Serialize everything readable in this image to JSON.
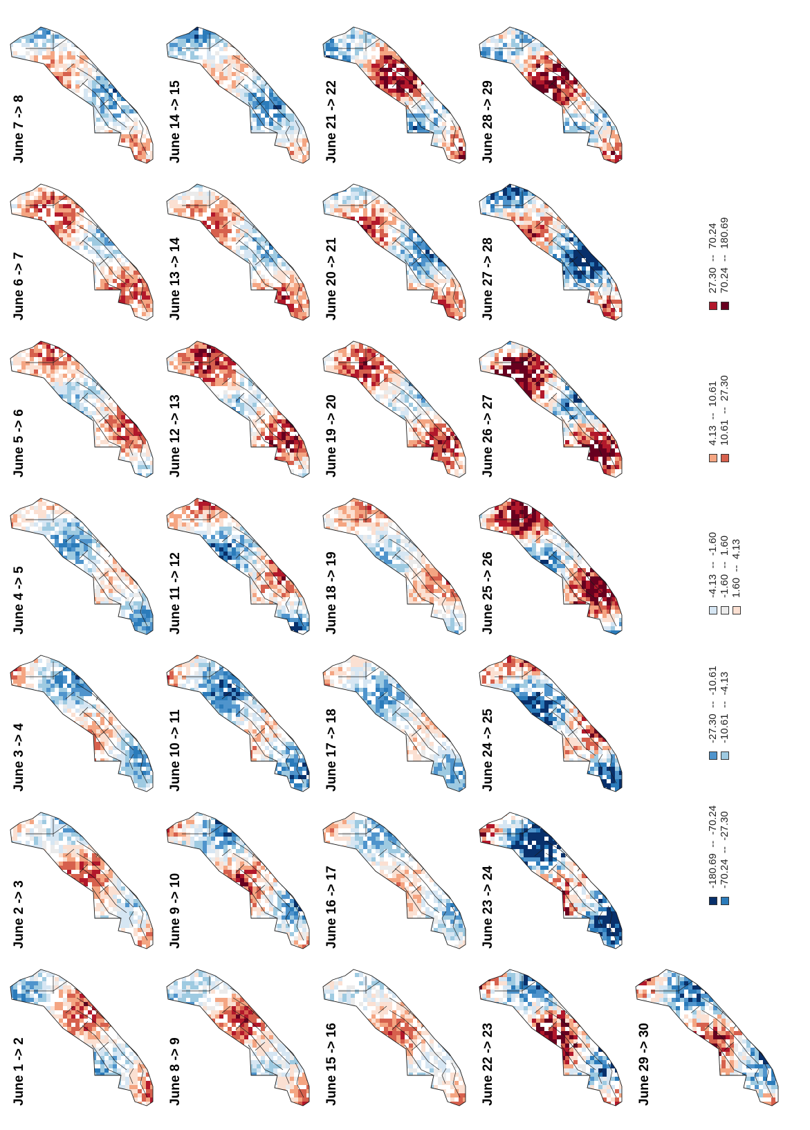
{
  "panels": [
    {
      "title": "June 1 -> 2",
      "seed": 11,
      "phase": 0.0,
      "amp": 0.55
    },
    {
      "title": "June 2 -> 3",
      "seed": 12,
      "phase": 0.9,
      "amp": 0.55
    },
    {
      "title": "June 3 -> 4",
      "seed": 13,
      "phase": 1.8,
      "amp": 0.55
    },
    {
      "title": "June 4 -> 5",
      "seed": 14,
      "phase": 2.7,
      "amp": 0.5
    },
    {
      "title": "June 5 -> 6",
      "seed": 15,
      "phase": 3.6,
      "amp": 0.55
    },
    {
      "title": "June 6 -> 7",
      "seed": 16,
      "phase": 4.5,
      "amp": 0.55
    },
    {
      "title": "June 7 -> 8",
      "seed": 17,
      "phase": 5.4,
      "amp": 0.55
    },
    {
      "title": "June 8 -> 9",
      "seed": 18,
      "phase": 0.4,
      "amp": 0.55
    },
    {
      "title": "June 9 -> 10",
      "seed": 19,
      "phase": 1.3,
      "amp": 0.65
    },
    {
      "title": "June 10 -> 11",
      "seed": 20,
      "phase": 2.2,
      "amp": 0.6
    },
    {
      "title": "June 11 -> 12",
      "seed": 21,
      "phase": 3.1,
      "amp": 0.65
    },
    {
      "title": "June 12 -> 13",
      "seed": 22,
      "phase": 4.0,
      "amp": 0.65
    },
    {
      "title": "June 13 -> 14",
      "seed": 23,
      "phase": 4.9,
      "amp": 0.55
    },
    {
      "title": "June 14 -> 15",
      "seed": 24,
      "phase": 5.8,
      "amp": 0.55
    },
    {
      "title": "June 15 -> 16",
      "seed": 25,
      "phase": 0.7,
      "amp": 0.45
    },
    {
      "title": "June 16 -> 17",
      "seed": 26,
      "phase": 1.6,
      "amp": 0.45
    },
    {
      "title": "June 17 -> 18",
      "seed": 27,
      "phase": 2.5,
      "amp": 0.45
    },
    {
      "title": "June 18 -> 19",
      "seed": 28,
      "phase": 3.4,
      "amp": 0.45
    },
    {
      "title": "June 19 -> 20",
      "seed": 29,
      "phase": 4.3,
      "amp": 0.6
    },
    {
      "title": "June 20 -> 21",
      "seed": 30,
      "phase": 5.2,
      "amp": 0.65
    },
    {
      "title": "June 21 -> 22",
      "seed": 31,
      "phase": 0.2,
      "amp": 0.75
    },
    {
      "title": "June 22 -> 23",
      "seed": 32,
      "phase": 1.1,
      "amp": 0.95
    },
    {
      "title": "June 23 -> 24",
      "seed": 33,
      "phase": 2.0,
      "amp": 0.95
    },
    {
      "title": "June 24 -> 25",
      "seed": 34,
      "phase": 2.9,
      "amp": 0.85
    },
    {
      "title": "June 25 -> 26",
      "seed": 35,
      "phase": 3.8,
      "amp": 0.85
    },
    {
      "title": "June 26 -> 27",
      "seed": 36,
      "phase": 4.7,
      "amp": 0.9
    },
    {
      "title": "June 27 -> 28",
      "seed": 37,
      "phase": 5.6,
      "amp": 0.9
    },
    {
      "title": "June 28 -> 29",
      "seed": 38,
      "phase": 0.5,
      "amp": 0.8
    },
    {
      "title": "June 29 -> 30",
      "seed": 39,
      "phase": 1.4,
      "amp": 0.8
    }
  ],
  "legend": [
    {
      "range": "-180.69  --  -70.24",
      "color": "#08306b"
    },
    {
      "range": "-70.24  --  -27.30",
      "color": "#2b7bba"
    },
    {
      "range": "-27.30  --  -10.61",
      "color": "#4f94cc"
    },
    {
      "range": "-10.61  --  -4.13",
      "color": "#9ecae1"
    },
    {
      "range": "-4.13  --  -1.60",
      "color": "#d6e6f3"
    },
    {
      "range": "-1.60  --  1.60",
      "color": "#ebebeb"
    },
    {
      "range": "1.60  --  4.13",
      "color": "#fbe0d2"
    },
    {
      "range": "4.13  --  10.61",
      "color": "#f4a582"
    },
    {
      "range": "10.61  --  27.30",
      "color": "#d6604d"
    },
    {
      "range": "27.30  --  70.24",
      "color": "#b2182b"
    },
    {
      "range": "70.24  --  180.69",
      "color": "#67001f"
    }
  ]
}
